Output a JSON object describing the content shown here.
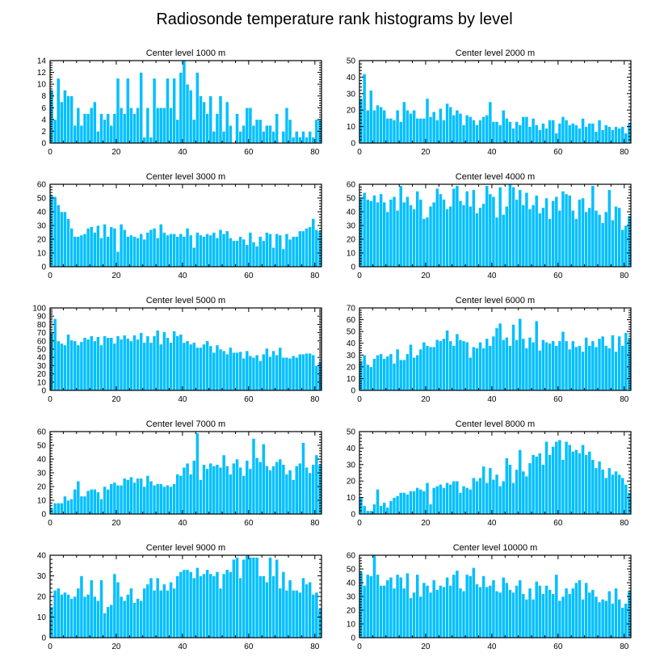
{
  "title": "Radiosonde temperature rank histograms by level",
  "colors": {
    "bar": "#00bfff",
    "bar_edge": "#ffffff",
    "axis": "#000000"
  },
  "chart_data": [
    {
      "type": "bar",
      "title": "Center level 1000 m",
      "xlim": [
        0,
        82
      ],
      "ylim": [
        0,
        14
      ],
      "xticks": [
        0,
        20,
        40,
        60,
        80
      ],
      "yticks": [
        0,
        2,
        4,
        6,
        8,
        10,
        12,
        14
      ],
      "x_start": 0,
      "values": [
        9,
        4,
        11,
        7,
        9,
        8,
        8,
        3,
        6,
        3,
        5,
        5,
        6,
        7,
        2,
        5,
        4,
        5,
        3,
        5,
        11,
        6,
        5,
        11,
        6,
        5,
        6,
        12,
        1,
        6,
        1,
        11,
        6,
        6,
        6,
        11,
        6,
        11,
        4,
        12,
        14,
        10,
        9,
        4,
        12,
        8,
        7,
        5,
        8,
        2,
        5,
        8,
        2,
        7,
        3,
        0,
        5,
        2,
        3,
        6,
        6,
        3,
        4,
        4,
        2,
        3,
        3,
        2,
        5,
        0,
        2,
        6,
        4,
        1,
        2,
        1,
        2,
        1,
        2,
        1,
        4,
        4,
        3
      ]
    },
    {
      "type": "bar",
      "title": "Center level 2000 m",
      "xlim": [
        0,
        82
      ],
      "ylim": [
        0,
        50
      ],
      "xticks": [
        0,
        20,
        40,
        60,
        80
      ],
      "yticks": [
        0,
        10,
        20,
        30,
        40,
        50
      ],
      "x_start": 0,
      "values": [
        27,
        42,
        20,
        32,
        20,
        23,
        22,
        20,
        15,
        15,
        14,
        20,
        13,
        25,
        20,
        18,
        20,
        15,
        15,
        15,
        27,
        16,
        19,
        14,
        21,
        14,
        24,
        22,
        17,
        20,
        18,
        11,
        17,
        16,
        14,
        11,
        14,
        16,
        17,
        25,
        13,
        13,
        11,
        20,
        15,
        13,
        9,
        13,
        11,
        16,
        16,
        10,
        15,
        11,
        8,
        12,
        9,
        14,
        14,
        6,
        12,
        16,
        14,
        11,
        12,
        11,
        9,
        15,
        10,
        12,
        12,
        7,
        14,
        8,
        11,
        10,
        8,
        10,
        9,
        10,
        6,
        12,
        12
      ]
    },
    {
      "type": "bar",
      "title": "Center level 3000 m",
      "xlim": [
        0,
        82
      ],
      "ylim": [
        0,
        60
      ],
      "xticks": [
        0,
        20,
        40,
        60,
        80
      ],
      "yticks": [
        0,
        10,
        20,
        30,
        40,
        50,
        60
      ],
      "x_start": 0,
      "values": [
        52,
        51,
        45,
        40,
        40,
        35,
        28,
        22,
        22,
        23,
        24,
        28,
        29,
        25,
        30,
        21,
        31,
        22,
        29,
        28,
        11,
        31,
        27,
        22,
        23,
        22,
        21,
        24,
        20,
        25,
        27,
        28,
        21,
        31,
        25,
        23,
        24,
        24,
        22,
        24,
        22,
        28,
        23,
        14,
        25,
        23,
        22,
        24,
        23,
        25,
        21,
        27,
        24,
        26,
        21,
        19,
        19,
        22,
        20,
        16,
        25,
        18,
        15,
        22,
        19,
        25,
        24,
        14,
        24,
        23,
        13,
        24,
        20,
        22,
        22,
        26,
        26,
        28,
        29,
        35,
        27,
        26,
        25
      ]
    },
    {
      "type": "bar",
      "title": "Center level 4000 m",
      "xlim": [
        0,
        82
      ],
      "ylim": [
        0,
        60
      ],
      "xticks": [
        0,
        20,
        40,
        60,
        80
      ],
      "yticks": [
        0,
        10,
        20,
        30,
        40,
        50,
        60
      ],
      "x_start": 0,
      "values": [
        50,
        54,
        49,
        48,
        52,
        47,
        53,
        47,
        40,
        49,
        51,
        41,
        59,
        47,
        51,
        45,
        42,
        55,
        49,
        35,
        36,
        44,
        47,
        57,
        53,
        49,
        42,
        44,
        57,
        59,
        48,
        45,
        55,
        44,
        56,
        39,
        43,
        46,
        59,
        53,
        51,
        36,
        58,
        38,
        44,
        60,
        58,
        49,
        56,
        45,
        54,
        42,
        45,
        52,
        39,
        43,
        50,
        35,
        48,
        51,
        41,
        55,
        53,
        52,
        41,
        35,
        49,
        50,
        40,
        43,
        59,
        41,
        38,
        32,
        40,
        56,
        34,
        44,
        43,
        27,
        30,
        37,
        36
      ]
    },
    {
      "type": "bar",
      "title": "Center level 5000 m",
      "xlim": [
        0,
        82
      ],
      "ylim": [
        0,
        100
      ],
      "xticks": [
        0,
        20,
        40,
        60,
        80
      ],
      "yticks": [
        0,
        10,
        20,
        30,
        40,
        50,
        60,
        70,
        80,
        90,
        100
      ],
      "x_start": 0,
      "values": [
        70,
        87,
        60,
        57,
        55,
        68,
        61,
        60,
        55,
        59,
        64,
        62,
        66,
        60,
        65,
        55,
        66,
        64,
        64,
        57,
        66,
        62,
        67,
        63,
        60,
        67,
        62,
        70,
        58,
        66,
        58,
        66,
        73,
        56,
        71,
        64,
        58,
        72,
        66,
        68,
        58,
        60,
        56,
        58,
        52,
        52,
        56,
        60,
        54,
        46,
        55,
        50,
        48,
        44,
        52,
        46,
        46,
        47,
        39,
        48,
        42,
        40,
        43,
        36,
        44,
        51,
        41,
        48,
        43,
        52,
        40,
        40,
        39,
        42,
        40,
        44,
        44,
        45,
        45,
        43,
        30,
        34,
        35
      ]
    },
    {
      "type": "bar",
      "title": "Center level 6000 m",
      "xlim": [
        0,
        82
      ],
      "ylim": [
        0,
        70
      ],
      "xticks": [
        0,
        20,
        40,
        60,
        80
      ],
      "yticks": [
        0,
        10,
        20,
        30,
        40,
        50,
        60,
        70
      ],
      "x_start": 0,
      "values": [
        25,
        30,
        22,
        20,
        27,
        30,
        31,
        27,
        29,
        31,
        23,
        35,
        26,
        26,
        31,
        39,
        28,
        30,
        35,
        41,
        38,
        37,
        37,
        43,
        42,
        44,
        51,
        42,
        38,
        48,
        43,
        42,
        41,
        28,
        37,
        36,
        41,
        36,
        44,
        38,
        46,
        53,
        57,
        43,
        45,
        38,
        56,
        43,
        61,
        44,
        36,
        45,
        41,
        59,
        34,
        43,
        41,
        40,
        42,
        38,
        42,
        50,
        42,
        35,
        42,
        37,
        38,
        33,
        45,
        38,
        42,
        37,
        44,
        46,
        38,
        36,
        47,
        33,
        46,
        38,
        49,
        44,
        41
      ]
    },
    {
      "type": "bar",
      "title": "Center level 7000 m",
      "xlim": [
        0,
        82
      ],
      "ylim": [
        0,
        60
      ],
      "xticks": [
        0,
        20,
        40,
        60,
        80
      ],
      "yticks": [
        0,
        10,
        20,
        30,
        40,
        50,
        60
      ],
      "x_start": 0,
      "values": [
        4,
        8,
        8,
        8,
        13,
        10,
        11,
        18,
        24,
        13,
        13,
        17,
        18,
        18,
        16,
        11,
        20,
        18,
        22,
        23,
        21,
        21,
        26,
        25,
        27,
        23,
        26,
        26,
        20,
        28,
        24,
        21,
        22,
        22,
        20,
        21,
        20,
        22,
        29,
        28,
        34,
        37,
        29,
        39,
        59,
        25,
        36,
        33,
        37,
        35,
        36,
        34,
        43,
        35,
        29,
        37,
        40,
        34,
        28,
        39,
        33,
        55,
        41,
        38,
        51,
        35,
        32,
        35,
        38,
        40,
        36,
        29,
        32,
        25,
        35,
        37,
        52,
        34,
        30,
        36,
        43,
        36,
        34
      ]
    },
    {
      "type": "bar",
      "title": "Center level 8000 m",
      "xlim": [
        0,
        82
      ],
      "ylim": [
        0,
        50
      ],
      "xticks": [
        0,
        20,
        40,
        60,
        80
      ],
      "yticks": [
        0,
        10,
        20,
        30,
        40,
        50
      ],
      "x_start": 0,
      "values": [
        10,
        5,
        2,
        2,
        6,
        15,
        5,
        7,
        4,
        8,
        10,
        11,
        13,
        13,
        12,
        14,
        14,
        16,
        15,
        14,
        19,
        6,
        16,
        17,
        18,
        16,
        19,
        18,
        20,
        20,
        13,
        17,
        16,
        15,
        22,
        20,
        22,
        29,
        19,
        28,
        21,
        24,
        17,
        20,
        34,
        30,
        19,
        27,
        39,
        26,
        23,
        31,
        36,
        35,
        37,
        30,
        44,
        36,
        41,
        44,
        45,
        33,
        44,
        42,
        38,
        39,
        37,
        42,
        36,
        38,
        33,
        28,
        32,
        27,
        22,
        28,
        24,
        26,
        24,
        22,
        18,
        13,
        16
      ]
    },
    {
      "type": "bar",
      "title": "Center level 9000 m",
      "xlim": [
        0,
        82
      ],
      "ylim": [
        0,
        40
      ],
      "xticks": [
        0,
        20,
        40,
        60,
        80
      ],
      "yticks": [
        0,
        10,
        20,
        30,
        40
      ],
      "x_start": 0,
      "values": [
        15,
        23,
        24,
        21,
        22,
        21,
        19,
        20,
        24,
        30,
        20,
        21,
        28,
        20,
        18,
        28,
        12,
        15,
        16,
        31,
        27,
        20,
        18,
        21,
        24,
        17,
        19,
        18,
        24,
        26,
        29,
        23,
        29,
        23,
        26,
        23,
        27,
        24,
        30,
        32,
        33,
        33,
        32,
        29,
        34,
        30,
        31,
        33,
        31,
        30,
        32,
        24,
        31,
        33,
        32,
        38,
        39,
        29,
        38,
        40,
        39,
        39,
        39,
        30,
        30,
        27,
        39,
        30,
        38,
        24,
        32,
        23,
        28,
        23,
        23,
        22,
        29,
        26,
        27,
        21,
        22,
        14,
        11
      ]
    },
    {
      "type": "bar",
      "title": "Center level 10000 m",
      "xlim": [
        0,
        82
      ],
      "ylim": [
        0,
        60
      ],
      "xticks": [
        0,
        20,
        40,
        60,
        80
      ],
      "yticks": [
        0,
        10,
        20,
        30,
        40,
        50,
        60
      ],
      "x_start": 0,
      "values": [
        48,
        38,
        46,
        45,
        61,
        46,
        38,
        38,
        42,
        44,
        36,
        46,
        44,
        36,
        47,
        29,
        33,
        46,
        30,
        40,
        38,
        33,
        42,
        35,
        38,
        37,
        44,
        38,
        46,
        49,
        36,
        34,
        46,
        45,
        51,
        39,
        37,
        45,
        37,
        38,
        42,
        34,
        33,
        44,
        40,
        35,
        33,
        38,
        42,
        32,
        28,
        36,
        28,
        41,
        38,
        32,
        38,
        35,
        32,
        46,
        27,
        30,
        36,
        32,
        36,
        40,
        42,
        28,
        40,
        33,
        35,
        30,
        26,
        28,
        27,
        34,
        25,
        36,
        28,
        22,
        25,
        34,
        28
      ]
    }
  ]
}
